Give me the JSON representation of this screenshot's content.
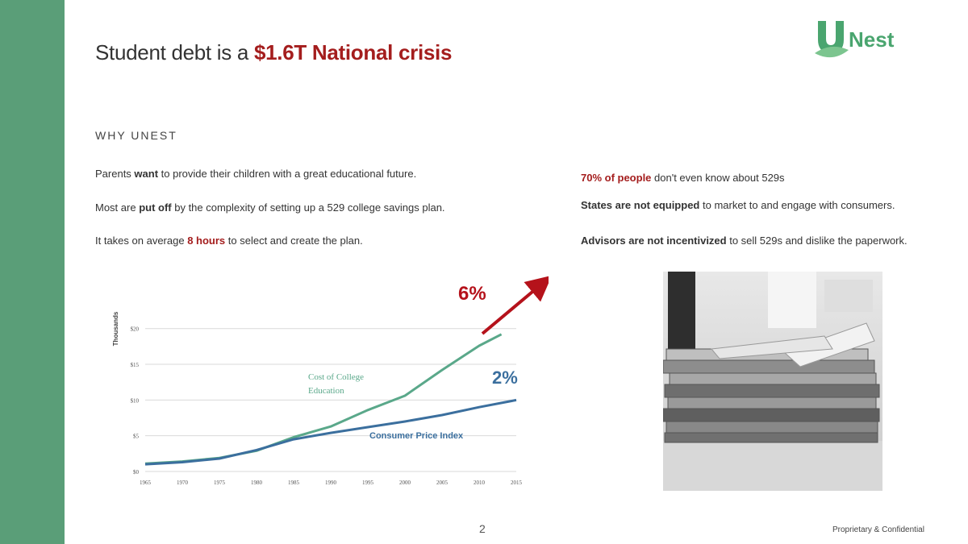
{
  "logo": {
    "text": "Nest"
  },
  "title": {
    "prefix": "Student debt is a ",
    "highlight": "$1.6T National crisis"
  },
  "section_label": "WHY UNEST",
  "left_paragraphs": [
    {
      "a": "Parents ",
      "b": "want",
      "c": " to provide their children with a great educational future."
    },
    {
      "a": "Most are ",
      "b": "put off",
      "c": " by the complexity of setting up a 529 college savings plan."
    },
    {
      "a": "It takes on average ",
      "b": "8 hours",
      "c": " to select and create the plan."
    }
  ],
  "right_paragraphs": [
    {
      "b": "70% of people",
      "c": " don't even know about 529s"
    },
    {
      "b": "States are not equipped",
      "c": " to market to and engage with consumers."
    },
    {
      "b": "Advisors are not incentivized",
      "c": " to sell 529s and dislike the paperwork."
    }
  ],
  "chart_data": {
    "type": "line",
    "ylabel": "Thousands",
    "x": [
      1965,
      1970,
      1975,
      1980,
      1985,
      1990,
      1995,
      2000,
      2005,
      2010,
      2013
    ],
    "x_ticks": [
      "1965",
      "1970",
      "1975",
      "1980",
      "1985",
      "1990",
      "1995",
      "2000",
      "2005",
      "2010",
      "2015"
    ],
    "y_ticks": [
      "$0",
      "$5",
      "$10",
      "$15",
      "$20"
    ],
    "ylim": [
      0,
      22
    ],
    "xlim": [
      1965,
      2015
    ],
    "series": [
      {
        "name": "Cost of College Education",
        "color": "#5aa88a",
        "x": [
          1965,
          1970,
          1975,
          1980,
          1985,
          1990,
          1995,
          2000,
          2005,
          2010,
          2013
        ],
        "values": [
          1.1,
          1.4,
          1.9,
          2.9,
          4.8,
          6.3,
          8.6,
          10.6,
          14.2,
          17.6,
          19.2
        ]
      },
      {
        "name": "Consumer Price Index",
        "color": "#3b6f9e",
        "x": [
          1965,
          1970,
          1975,
          1980,
          1985,
          1990,
          1995,
          2000,
          2005,
          2010,
          2015
        ],
        "values": [
          1.0,
          1.3,
          1.8,
          3.0,
          4.5,
          5.4,
          6.2,
          7.0,
          7.9,
          9.0,
          10.0
        ]
      }
    ],
    "annotations": [
      {
        "text": "6%",
        "color": "#b5121b"
      },
      {
        "text": "2%",
        "color": "#3b6f9e"
      }
    ],
    "arrow_color": "#b5121b"
  },
  "footer": {
    "page": "2",
    "confidential": "Proprietary & Confidential"
  }
}
